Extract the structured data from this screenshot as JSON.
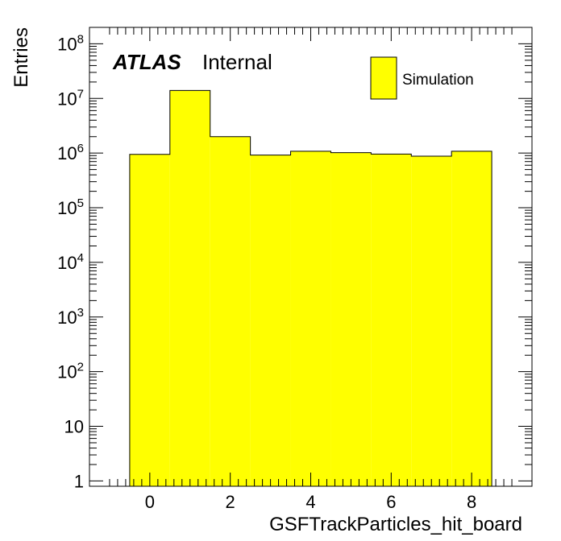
{
  "chart_data": {
    "type": "bar",
    "histogram": true,
    "x": [
      0,
      1,
      2,
      3,
      4,
      5,
      6,
      7,
      8
    ],
    "values": [
      950000,
      14000000,
      2000000,
      920000,
      1080000,
      1020000,
      960000,
      880000,
      1080000
    ],
    "series": [
      {
        "name": "Simulation",
        "values": [
          950000,
          14000000,
          2000000,
          920000,
          1080000,
          1020000,
          960000,
          880000,
          1080000
        ]
      }
    ],
    "xlabel": "GSFTrackParticles_hit_board",
    "ylabel": "Entries",
    "xlim": [
      -1.5,
      9.5
    ],
    "ylim": [
      0.8,
      200000000
    ],
    "yscale": "log",
    "x_ticks": [
      "0",
      "2",
      "4",
      "6",
      "8"
    ],
    "y_ticks": [
      "1",
      "10",
      "10^2",
      "10^3",
      "10^4",
      "10^5",
      "10^6",
      "10^7",
      "10^8"
    ],
    "legend": {
      "entries": [
        "Simulation"
      ],
      "placement": "top-right"
    },
    "grid": false,
    "colors": {
      "fill": "#ffff00",
      "line": "#000000"
    }
  },
  "labels": {
    "atlas": "ATLAS",
    "internal": "Internal"
  }
}
